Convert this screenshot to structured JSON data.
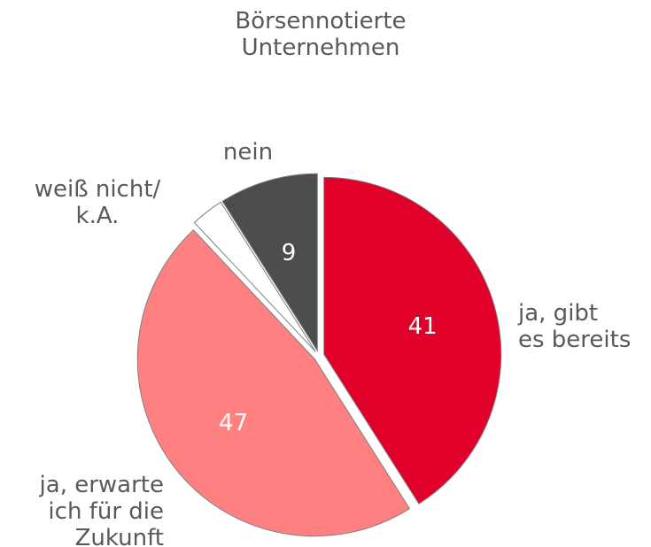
{
  "chart_data": {
    "type": "pie",
    "title": "Börsennotierte\nUnternehmen",
    "categories": [
      "ja, gibt\nes bereits",
      "ja, erwarte\nich für die\nZukunft",
      "weiß nicht/\nk.A.",
      "nein"
    ],
    "values": [
      41,
      47,
      3,
      9
    ],
    "value_labels": [
      "41",
      "47",
      null,
      "9"
    ],
    "colors": [
      "#e0002a",
      "#ff8080",
      "#ffffff",
      "#4d4d4d"
    ]
  }
}
